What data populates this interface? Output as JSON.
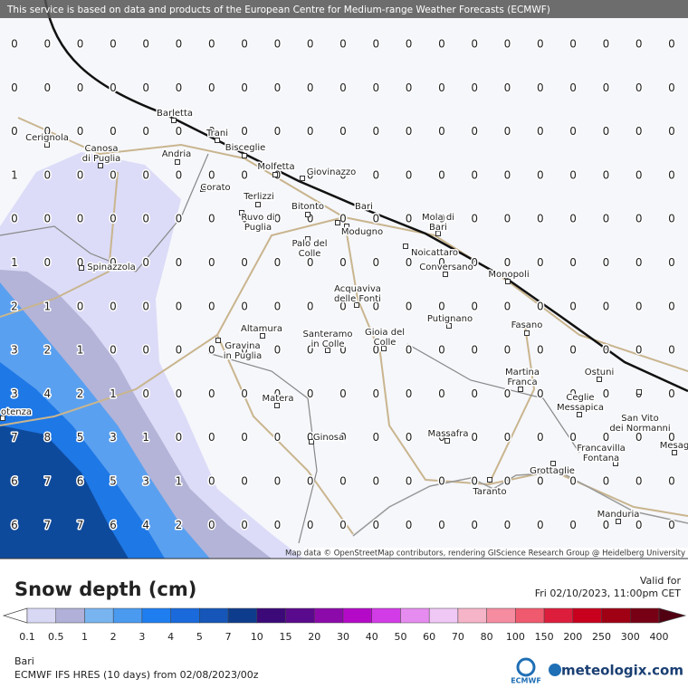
{
  "header": {
    "notice": "This service is based on data and products of the European Centre for Medium-range Weather Forecasts (ECMWF)"
  },
  "grid": {
    "rows": [
      [
        0,
        0,
        0,
        0,
        0,
        0,
        0,
        0,
        0,
        0,
        0,
        0,
        0,
        0,
        0,
        0,
        0,
        0,
        0,
        0,
        0
      ],
      [
        0,
        0,
        0,
        0,
        0,
        0,
        0,
        0,
        0,
        0,
        0,
        0,
        0,
        0,
        0,
        0,
        0,
        0,
        0,
        0,
        0
      ],
      [
        0,
        0,
        0,
        0,
        0,
        0,
        0,
        0,
        0,
        0,
        0,
        0,
        0,
        0,
        0,
        0,
        0,
        0,
        0,
        0,
        0
      ],
      [
        1,
        0,
        0,
        0,
        0,
        0,
        0,
        0,
        0,
        0,
        0,
        0,
        0,
        0,
        0,
        0,
        0,
        0,
        0,
        0,
        0
      ],
      [
        0,
        0,
        0,
        0,
        0,
        0,
        0,
        0,
        0,
        0,
        0,
        0,
        0,
        0,
        0,
        0,
        0,
        0,
        0,
        0,
        0
      ],
      [
        1,
        0,
        0,
        0,
        0,
        0,
        0,
        0,
        0,
        0,
        0,
        0,
        0,
        0,
        0,
        0,
        0,
        0,
        0,
        0,
        0
      ],
      [
        2,
        1,
        0,
        0,
        0,
        0,
        0,
        0,
        0,
        0,
        0,
        0,
        0,
        0,
        0,
        0,
        0,
        0,
        0,
        0,
        0
      ],
      [
        3,
        2,
        1,
        0,
        0,
        0,
        0,
        0,
        0,
        0,
        0,
        0,
        0,
        0,
        0,
        0,
        0,
        0,
        0,
        0,
        0
      ],
      [
        3,
        4,
        2,
        1,
        0,
        0,
        0,
        0,
        0,
        0,
        0,
        0,
        0,
        0,
        0,
        0,
        0,
        0,
        0,
        0,
        0
      ],
      [
        7,
        8,
        5,
        3,
        1,
        0,
        0,
        0,
        0,
        0,
        0,
        0,
        0,
        0,
        0,
        0,
        0,
        0,
        0,
        0,
        0
      ],
      [
        6,
        7,
        6,
        5,
        3,
        1,
        0,
        0,
        0,
        0,
        0,
        0,
        0,
        0,
        0,
        0,
        0,
        0,
        0,
        0,
        0
      ],
      [
        6,
        7,
        7,
        6,
        4,
        2,
        0,
        0,
        0,
        0,
        0,
        0,
        0,
        0,
        0,
        0,
        0,
        0,
        0,
        0,
        0
      ]
    ]
  },
  "places": [
    {
      "lines": [
        "Barletta"
      ]
    },
    {
      "lines": [
        "Trani"
      ]
    },
    {
      "lines": [
        "Cerignola"
      ]
    },
    {
      "lines": [
        "Canosa",
        "di Puglia"
      ]
    },
    {
      "lines": [
        "Andria"
      ]
    },
    {
      "lines": [
        "Bisceglie"
      ]
    },
    {
      "lines": [
        "Molfetta"
      ]
    },
    {
      "lines": [
        "Giovinazzo"
      ]
    },
    {
      "lines": [
        "Corato"
      ]
    },
    {
      "lines": [
        "Terlizzi"
      ]
    },
    {
      "lines": [
        "Bitonto"
      ]
    },
    {
      "lines": [
        "Bari"
      ]
    },
    {
      "lines": [
        "Ruvo di",
        "Puglia"
      ]
    },
    {
      "lines": [
        "Modugno"
      ]
    },
    {
      "lines": [
        "Mola di",
        "Bari"
      ]
    },
    {
      "lines": [
        "Palo del",
        "Colle"
      ]
    },
    {
      "lines": [
        "Noicattaro"
      ]
    },
    {
      "lines": [
        "Conversano"
      ]
    },
    {
      "lines": [
        "Spinazzola"
      ]
    },
    {
      "lines": [
        "Monopoli"
      ]
    },
    {
      "lines": [
        "Acquaviva",
        "delle Fonti"
      ]
    },
    {
      "lines": [
        "Altamura"
      ]
    },
    {
      "lines": [
        "Putignano"
      ]
    },
    {
      "lines": [
        "Fasano"
      ]
    },
    {
      "lines": [
        "Santeramo",
        "in Colle"
      ]
    },
    {
      "lines": [
        "Gioia del",
        "Colle"
      ]
    },
    {
      "lines": [
        "Gravina",
        "in Puglia"
      ]
    },
    {
      "lines": [
        "Martina",
        "Franca"
      ]
    },
    {
      "lines": [
        "Ostuni"
      ]
    },
    {
      "lines": [
        "Matera"
      ]
    },
    {
      "lines": [
        "Ceglie",
        "Messapica"
      ]
    },
    {
      "lines": [
        "San Vito",
        "dei Normanni"
      ]
    },
    {
      "lines": [
        "otenza"
      ]
    },
    {
      "lines": [
        "Mesag"
      ]
    },
    {
      "lines": [
        "Ginosa"
      ]
    },
    {
      "lines": [
        "Massafra"
      ]
    },
    {
      "lines": [
        "Francavilla",
        "Fontana"
      ]
    },
    {
      "lines": [
        "Grottaglie"
      ]
    },
    {
      "lines": [
        "Taranto"
      ]
    },
    {
      "lines": [
        "Manduria"
      ]
    }
  ],
  "attribution": "Map data © OpenStreetMap contributors, rendering GIScience Research Group @ Heidelberg University",
  "legend": {
    "title": "Snow depth (cm)",
    "labels": [
      0.1,
      0.5,
      1,
      2,
      3,
      4,
      5,
      7,
      10,
      15,
      20,
      30,
      40,
      50,
      60,
      70,
      80,
      100,
      150,
      200,
      250,
      300,
      400
    ],
    "colors": [
      "#ffffff",
      "#d8d8f5",
      "#b0b0d8",
      "#78b4f0",
      "#4a9af0",
      "#1e7ef0",
      "#1a6adc",
      "#1556b8",
      "#0e3c8c",
      "#3c0a78",
      "#5a0a8c",
      "#8c0aaa",
      "#b40ac8",
      "#d23ce6",
      "#e68cf0",
      "#f0c8f5",
      "#f5b4c8",
      "#f58ca0",
      "#f05a6e",
      "#dc1e3c",
      "#c8001e",
      "#a00014",
      "#780014",
      "#500010"
    ]
  },
  "valid": {
    "label": "Valid for",
    "time": "Fri 02/10/2023, 11:00pm CET"
  },
  "location": "Bari",
  "model": "ECMWF IFS HRES (10 days) from 02/08/2023/00z",
  "logos": {
    "ecmwf": "ECMWF",
    "site": "meteologix.com"
  }
}
